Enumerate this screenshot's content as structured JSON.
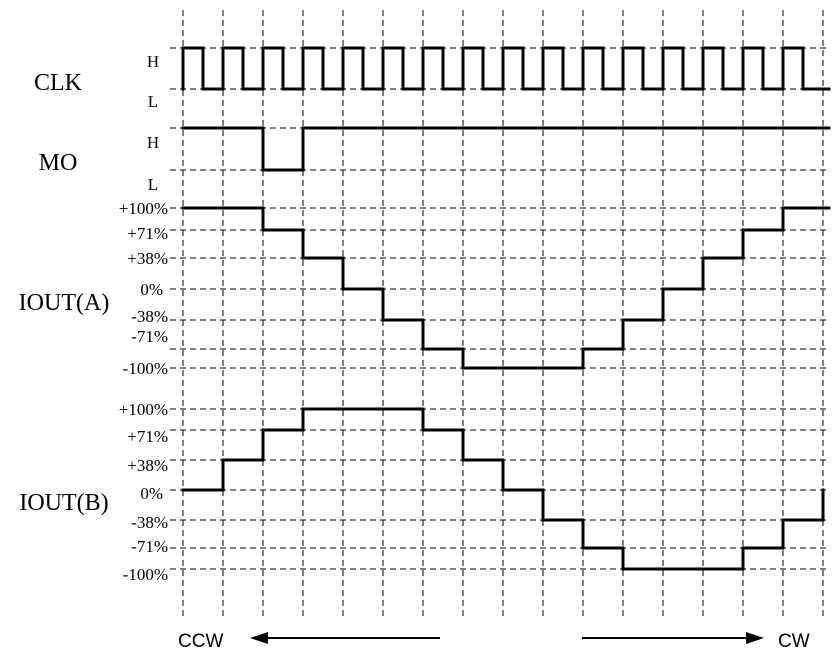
{
  "signals": {
    "clk": {
      "name": "CLK",
      "levels": [
        "H",
        "L"
      ]
    },
    "mo": {
      "name": "MO",
      "levels": [
        "H",
        "L"
      ]
    },
    "iout_a": {
      "name": "IOUT(A)",
      "levels": [
        "+100%",
        "+71%",
        "+38%",
        "0%",
        "-38%",
        "-71%",
        "-100%"
      ]
    },
    "iout_b": {
      "name": "IOUT(B)",
      "levels": [
        "+100%",
        "+71%",
        "+38%",
        "0%",
        "-38%",
        "-71%",
        "-100%"
      ]
    }
  },
  "waveforms": {
    "mo_low_steps": [
      2
    ],
    "iout_a_percent": [
      100,
      100,
      71,
      38,
      0,
      -38,
      -71,
      -100,
      -100,
      -100,
      -71,
      -38,
      0,
      38,
      71,
      100
    ],
    "iout_b_percent": [
      0,
      38,
      71,
      100,
      100,
      100,
      71,
      38,
      0,
      -38,
      -71,
      -100,
      -100,
      -100,
      -71,
      -38
    ]
  },
  "direction": {
    "left_label": "CCW",
    "right_label": "CW"
  }
}
